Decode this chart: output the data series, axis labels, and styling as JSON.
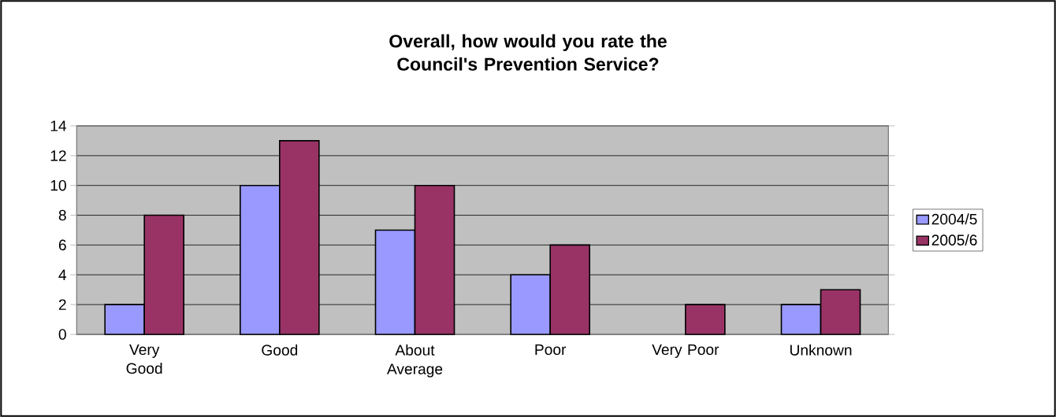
{
  "chart_data": {
    "type": "bar",
    "title": "Overall, how would you rate the Council's Prevention Service?",
    "categories": [
      "Very Good",
      "Good",
      "About Average",
      "Poor",
      "Very Poor",
      "Unknown"
    ],
    "series": [
      {
        "name": "2004/5",
        "color": "#9999ff",
        "values": [
          2,
          10,
          7,
          4,
          null,
          2
        ]
      },
      {
        "name": "2005/6",
        "color": "#993366",
        "values": [
          8,
          13,
          10,
          6,
          2,
          3
        ]
      }
    ],
    "ylim": [
      0,
      14
    ],
    "yticks": [
      0,
      2,
      4,
      6,
      8,
      10,
      12,
      14
    ],
    "grid": "y",
    "legend": "right"
  }
}
